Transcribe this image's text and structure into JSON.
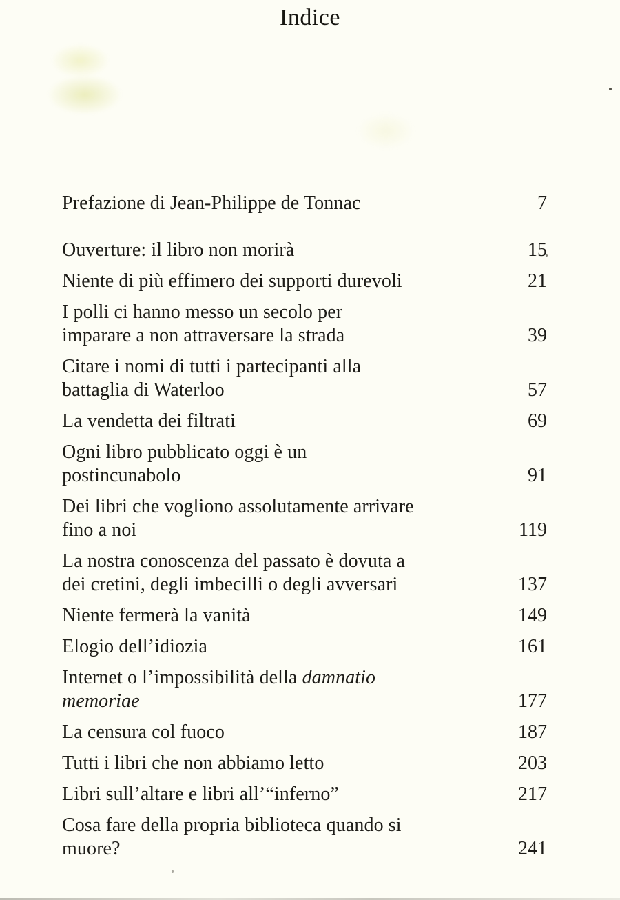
{
  "page": {
    "title": "Indice",
    "background_color": "#fdfdf5",
    "text_color": "#1d1c18"
  },
  "toc": {
    "entries": [
      {
        "lines": [
          "Prefazione di Jean-Philippe de Tonnac"
        ],
        "page": "7",
        "extra_gap_after": true
      },
      {
        "lines": [
          "Ouverture: il libro non morirà"
        ],
        "page": "15"
      },
      {
        "lines": [
          "Niente di più effimero dei supporti durevoli"
        ],
        "page": "21"
      },
      {
        "lines": [
          "I polli ci hanno messo un secolo per",
          "imparare a non attraversare la strada"
        ],
        "page": "39"
      },
      {
        "lines": [
          "Citare i nomi di tutti i partecipanti alla",
          "battaglia di Waterloo"
        ],
        "page": "57"
      },
      {
        "lines": [
          "La vendetta dei filtrati"
        ],
        "page": "69"
      },
      {
        "lines": [
          "Ogni libro pubblicato oggi è un",
          "postincunabolo"
        ],
        "page": "91"
      },
      {
        "lines": [
          "Dei libri che vogliono assolutamente arrivare",
          "fino a noi"
        ],
        "page": "119"
      },
      {
        "lines": [
          "La nostra conoscenza del passato è dovuta a",
          "dei cretini, degli imbecilli o degli avversari"
        ],
        "page": "137"
      },
      {
        "lines": [
          "Niente fermerà la vanità"
        ],
        "page": "149"
      },
      {
        "lines": [
          "Elogio dell’idiozia"
        ],
        "page": "161"
      },
      {
        "lines": [
          "Internet o l’impossibilità della *damnatio*",
          "*memoriae*"
        ],
        "page": "177"
      },
      {
        "lines": [
          "La censura col fuoco"
        ],
        "page": "187"
      },
      {
        "lines": [
          "Tutti i libri che non abbiamo letto"
        ],
        "page": "203"
      },
      {
        "lines": [
          "Libri sull’altare e libri all’“inferno”"
        ],
        "page": "217"
      },
      {
        "lines": [
          "Cosa fare della propria biblioteca quando si",
          "muore?"
        ],
        "page": "241"
      }
    ]
  }
}
